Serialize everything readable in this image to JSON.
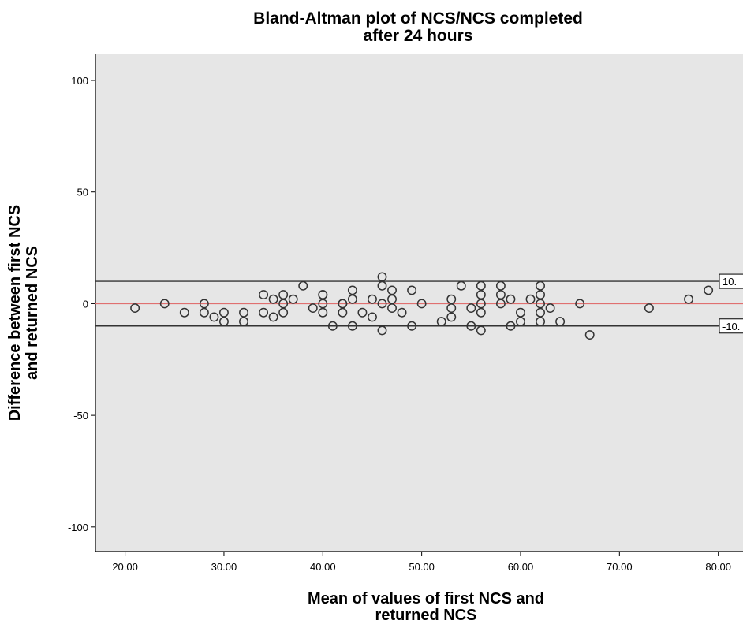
{
  "chart_data": {
    "type": "scatter",
    "title_lines": [
      "Bland-Altman plot of NCS/NCS completed",
      "after 24 hours"
    ],
    "xlabel_lines": [
      "Mean of values of first NCS and",
      "returned NCS"
    ],
    "ylabel_lines": [
      "Difference between first NCS",
      "and returned NCS"
    ],
    "xlim": [
      17.0,
      82.5
    ],
    "ylim": [
      -111,
      112
    ],
    "x_ticks": [
      20,
      30,
      40,
      50,
      60,
      70,
      80
    ],
    "x_tick_labels": [
      "20.00",
      "30.00",
      "40.00",
      "50.00",
      "60.00",
      "70.00",
      "80.00"
    ],
    "y_ticks": [
      100,
      50,
      0,
      -50,
      -100
    ],
    "y_tick_labels": [
      "100",
      "50",
      "0",
      "-50",
      "-100"
    ],
    "grid": false,
    "plot_background": "#e6e6e6",
    "marker_color": "#333333",
    "reference_lines": [
      {
        "y": 10,
        "label": "10.",
        "color": "#333333"
      },
      {
        "y": 0,
        "label": "",
        "color": "#e07070"
      },
      {
        "y": -10,
        "label": "-10.",
        "color": "#333333"
      }
    ],
    "points": [
      [
        21,
        -2
      ],
      [
        24,
        0
      ],
      [
        26,
        -4
      ],
      [
        28,
        0
      ],
      [
        28,
        -4
      ],
      [
        29,
        -6
      ],
      [
        30,
        -4
      ],
      [
        30,
        -8
      ],
      [
        32,
        -4
      ],
      [
        32,
        -8
      ],
      [
        34,
        4
      ],
      [
        34,
        -4
      ],
      [
        35,
        2
      ],
      [
        35,
        -6
      ],
      [
        36,
        4
      ],
      [
        36,
        0
      ],
      [
        36,
        -4
      ],
      [
        37,
        2
      ],
      [
        38,
        8
      ],
      [
        39,
        -2
      ],
      [
        40,
        4
      ],
      [
        40,
        0
      ],
      [
        40,
        4
      ],
      [
        40,
        -4
      ],
      [
        41,
        -10
      ],
      [
        42,
        0
      ],
      [
        42,
        -4
      ],
      [
        42,
        0
      ],
      [
        43,
        6
      ],
      [
        43,
        2
      ],
      [
        43,
        -10
      ],
      [
        44,
        -4
      ],
      [
        45,
        2
      ],
      [
        45,
        -6
      ],
      [
        46,
        12
      ],
      [
        46,
        8
      ],
      [
        46,
        0
      ],
      [
        46,
        -12
      ],
      [
        47,
        6
      ],
      [
        47,
        2
      ],
      [
        47,
        -2
      ],
      [
        48,
        -4
      ],
      [
        49,
        6
      ],
      [
        49,
        -10
      ],
      [
        50,
        0
      ],
      [
        52,
        -8
      ],
      [
        53,
        2
      ],
      [
        53,
        -2
      ],
      [
        53,
        -6
      ],
      [
        54,
        8
      ],
      [
        55,
        -2
      ],
      [
        55,
        -10
      ],
      [
        56,
        8
      ],
      [
        56,
        4
      ],
      [
        56,
        0
      ],
      [
        56,
        -4
      ],
      [
        56,
        -12
      ],
      [
        58,
        8
      ],
      [
        58,
        4
      ],
      [
        58,
        0
      ],
      [
        59,
        2
      ],
      [
        59,
        -10
      ],
      [
        60,
        -4
      ],
      [
        60,
        -8
      ],
      [
        61,
        2
      ],
      [
        62,
        8
      ],
      [
        62,
        4
      ],
      [
        62,
        0
      ],
      [
        62,
        -4
      ],
      [
        62,
        -8
      ],
      [
        63,
        -2
      ],
      [
        64,
        -8
      ],
      [
        66,
        0
      ],
      [
        67,
        -14
      ],
      [
        73,
        -2
      ],
      [
        77,
        2
      ],
      [
        79,
        6
      ]
    ]
  }
}
